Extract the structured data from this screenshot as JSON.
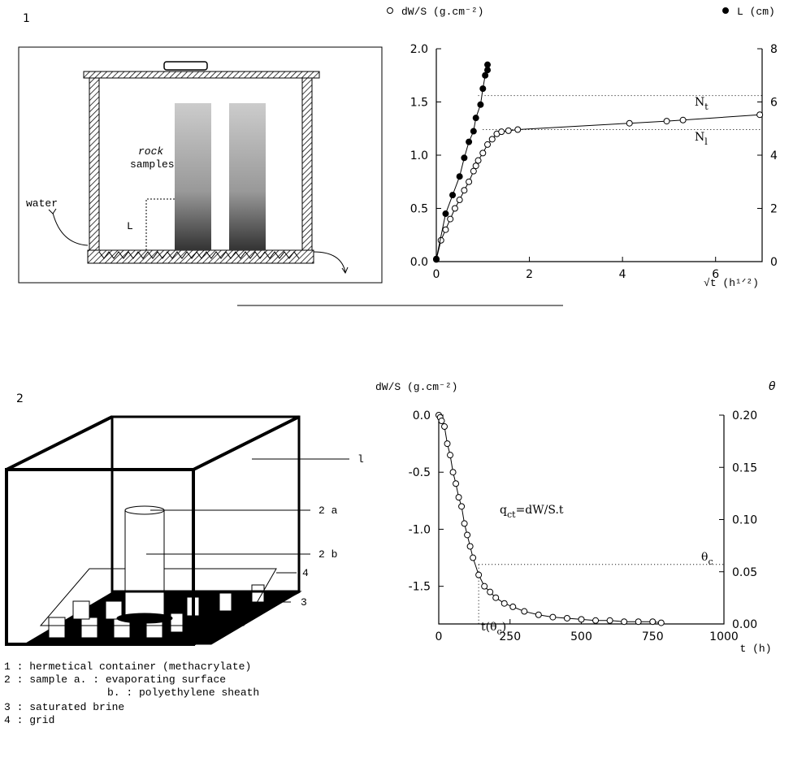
{
  "figure_1": {
    "number": "1",
    "rock_label": [
      "rock",
      "samples"
    ],
    "water_label": "water",
    "height_label": "L"
  },
  "figure_2": {
    "number": "2",
    "callouts": [
      "l",
      "2 a",
      "2 b",
      "4",
      "3"
    ],
    "key": [
      "1 : hermetical container (methacrylate)",
      "2 : sample a. : evaporating surface",
      "b. : polyethylene sheath",
      "3 : saturated brine",
      "4 : grid"
    ]
  },
  "chart_data": [
    {
      "type": "line",
      "xlabel": "√t (h¹ᐟ²)",
      "legend_position": "top",
      "xlim": [
        0,
        7
      ],
      "xticks": [
        0,
        2,
        4,
        6
      ],
      "ylim": [
        0,
        2
      ],
      "yticks": [
        {
          "value": 0,
          "label": "0.0"
        },
        0.5,
        {
          "value": 1,
          "label": "1.0"
        },
        1.5,
        {
          "value": 2,
          "label": "2.0"
        }
      ],
      "y2lim": [
        0,
        8
      ],
      "y2ticks": [
        0,
        2,
        4,
        6,
        8
      ],
      "hlines": [
        {
          "value": 1.56
        },
        {
          "value": 1.24
        }
      ],
      "annotations": [
        {
          "text": "N",
          "sub": "t"
        },
        {
          "text": "N",
          "sub": "l"
        }
      ],
      "series": [
        {
          "name": "dW/S (g.cm⁻²)",
          "marker": "open",
          "color": "#000",
          "x": [
            0,
            0.1,
            0.2,
            0.3,
            0.4,
            0.5,
            0.6,
            0.7,
            0.8,
            0.85,
            0.9,
            1.0,
            1.1,
            1.2,
            1.3,
            1.4,
            1.55,
            1.75,
            4.15,
            4.95,
            5.3,
            6.95
          ],
          "values": [
            0.02,
            0.2,
            0.3,
            0.4,
            0.5,
            0.58,
            0.67,
            0.75,
            0.85,
            0.9,
            0.95,
            1.02,
            1.1,
            1.15,
            1.2,
            1.22,
            1.23,
            1.24,
            1.3,
            1.32,
            1.33,
            1.38
          ]
        },
        {
          "name": "L (cm)",
          "marker": "filled",
          "color": "#000",
          "axis": "y2",
          "x": [
            0,
            0.2,
            0.35,
            0.5,
            0.6,
            0.7,
            0.8,
            0.85,
            0.95,
            1.0,
            1.05,
            1.1,
            1.1
          ],
          "values": [
            0.1,
            1.8,
            2.5,
            3.2,
            3.9,
            4.5,
            4.9,
            5.4,
            5.9,
            6.5,
            7.0,
            7.2,
            7.4
          ]
        }
      ]
    },
    {
      "type": "line",
      "xlabel": "t (h)",
      "ylabel": "dW/S (g.cm⁻²)",
      "y2label": "θ",
      "xlim": [
        0,
        1000
      ],
      "xticks": [
        0,
        250,
        500,
        750,
        1000
      ],
      "ylim": [
        -1.83,
        0
      ],
      "yticks": [
        {
          "value": 0,
          "label": "0.0"
        },
        -0.5,
        {
          "value": -1,
          "label": "-1.0"
        },
        -1.5
      ],
      "y2lim": [
        0,
        0.2
      ],
      "y2ticks": [
        {
          "value": 0.2,
          "label": "0.20"
        },
        0.15,
        {
          "value": 0.1,
          "label": "0.10"
        },
        0.05,
        {
          "value": 0,
          "label": "0.00"
        }
      ],
      "hlines": [
        {
          "value": 0.057,
          "axis": "y2"
        }
      ],
      "vlines": [
        140
      ],
      "annotations": [
        {
          "text": "q",
          "sub": "ct",
          "tail": "=dW/S.t"
        },
        {
          "text": "θ",
          "sub": "c"
        },
        {
          "text": "t(θ",
          "sub": "c",
          "tail": ")"
        }
      ],
      "series": [
        {
          "marker": "open",
          "color": "#000",
          "x": [
            0,
            5,
            10,
            20,
            30,
            40,
            50,
            60,
            70,
            80,
            90,
            100,
            110,
            120,
            140,
            160,
            180,
            200,
            230,
            260,
            300,
            350,
            400,
            450,
            500,
            550,
            600,
            650,
            700,
            750,
            780
          ],
          "values": [
            0,
            -0.02,
            -0.05,
            -0.1,
            -0.25,
            -0.35,
            -0.5,
            -0.6,
            -0.72,
            -0.8,
            -0.95,
            -1.05,
            -1.15,
            -1.25,
            -1.4,
            -1.5,
            -1.55,
            -1.6,
            -1.65,
            -1.68,
            -1.72,
            -1.75,
            -1.77,
            -1.78,
            -1.79,
            -1.8,
            -1.8,
            -1.81,
            -1.81,
            -1.81,
            -1.82
          ]
        }
      ]
    }
  ]
}
